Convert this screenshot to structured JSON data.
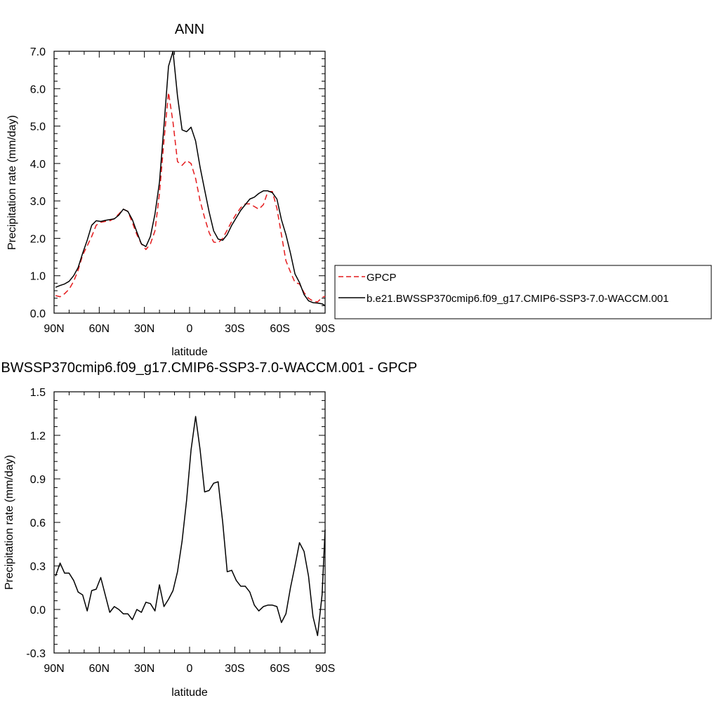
{
  "chart_data": [
    {
      "type": "line",
      "title": "ANN",
      "xlabel": "latitude",
      "ylabel": "Precipitation rate (mm/day)",
      "xlim": [
        90,
        -90
      ],
      "ylim": [
        0,
        7
      ],
      "xticks": [
        {
          "value": 90,
          "label": "90N"
        },
        {
          "value": 60,
          "label": "60N"
        },
        {
          "value": 30,
          "label": "30N"
        },
        {
          "value": 0,
          "label": "0"
        },
        {
          "value": -30,
          "label": "30S"
        },
        {
          "value": -60,
          "label": "60S"
        },
        {
          "value": -90,
          "label": "90S"
        }
      ],
      "yticks": [
        {
          "value": 0,
          "label": "0.0"
        },
        {
          "value": 1,
          "label": "1.0"
        },
        {
          "value": 2,
          "label": "2.0"
        },
        {
          "value": 3,
          "label": "3.0"
        },
        {
          "value": 4,
          "label": "4.0"
        },
        {
          "value": 5,
          "label": "5.0"
        },
        {
          "value": 6,
          "label": "6.0"
        },
        {
          "value": 7,
          "label": "7.0"
        }
      ],
      "legend_position": "right",
      "series": [
        {
          "name": "GPCP",
          "color": "#e41a1c",
          "dash": "dashed",
          "x": [
            89,
            86,
            83,
            80,
            77,
            74,
            71,
            68,
            65,
            62,
            59,
            56,
            53,
            50,
            47,
            44,
            41,
            38,
            35,
            32,
            29,
            26,
            23,
            20,
            17,
            14,
            11,
            8,
            5,
            2,
            -1,
            -4,
            -7,
            -10,
            -13,
            -16,
            -19,
            -22,
            -25,
            -28,
            -31,
            -34,
            -37,
            -40,
            -43,
            -46,
            -49,
            -52,
            -55,
            -58,
            -61,
            -64,
            -67,
            -70,
            -73,
            -76,
            -79,
            -82,
            -85,
            -88,
            -90
          ],
          "y": [
            0.47,
            0.44,
            0.52,
            0.64,
            0.85,
            1.15,
            1.55,
            1.8,
            2.05,
            2.35,
            2.43,
            2.45,
            2.47,
            2.53,
            2.65,
            2.78,
            2.72,
            2.42,
            2.1,
            1.85,
            1.7,
            1.85,
            2.2,
            3.2,
            4.6,
            5.9,
            5.1,
            4.05,
            3.95,
            4.08,
            4.0,
            3.6,
            3.0,
            2.55,
            2.15,
            1.9,
            1.88,
            2.0,
            2.22,
            2.45,
            2.65,
            2.82,
            2.92,
            2.92,
            2.85,
            2.78,
            2.9,
            3.25,
            3.25,
            2.8,
            2.1,
            1.4,
            1.1,
            0.82,
            0.78,
            0.55,
            0.4,
            0.32,
            0.3,
            0.42,
            0.45
          ]
        },
        {
          "name": "b.e21.BWSSP370cmip6.f09_g17.CMIP6-SSP3-7.0-WACCM.001",
          "color": "#000000",
          "dash": "solid",
          "x": [
            89,
            86,
            83,
            80,
            77,
            74,
            71,
            68,
            65,
            62,
            59,
            56,
            53,
            50,
            47,
            44,
            41,
            38,
            35,
            32,
            29,
            26,
            23,
            20,
            17,
            14,
            11,
            8,
            5,
            2,
            -1,
            -4,
            -7,
            -10,
            -13,
            -16,
            -19,
            -22,
            -25,
            -28,
            -31,
            -34,
            -37,
            -40,
            -43,
            -46,
            -49,
            -52,
            -55,
            -58,
            -61,
            -64,
            -67,
            -70,
            -73,
            -76,
            -79,
            -82,
            -85,
            -88,
            -90
          ],
          "y": [
            0.69,
            0.74,
            0.78,
            0.85,
            1.0,
            1.22,
            1.6,
            1.95,
            2.35,
            2.47,
            2.45,
            2.48,
            2.5,
            2.52,
            2.62,
            2.78,
            2.72,
            2.5,
            2.17,
            1.85,
            1.78,
            2.05,
            2.65,
            3.5,
            5.0,
            6.6,
            7.0,
            5.8,
            4.9,
            4.85,
            4.97,
            4.6,
            3.9,
            3.3,
            2.7,
            2.2,
            1.98,
            1.95,
            2.1,
            2.35,
            2.55,
            2.75,
            2.9,
            3.05,
            3.1,
            3.2,
            3.27,
            3.27,
            3.22,
            3.05,
            2.5,
            2.1,
            1.6,
            1.05,
            0.82,
            0.5,
            0.33,
            0.28,
            0.27,
            0.25,
            0.2
          ]
        }
      ]
    },
    {
      "type": "line",
      "title": "b.e21.BWSSP370cmip6.f09_g17.CMIP6-SSP3-7.0-WACCM.001 - GPCP",
      "xlabel": "latitude",
      "ylabel": "Precipitation rate (mm/day)",
      "xlim": [
        90,
        -90
      ],
      "ylim": [
        -0.3,
        1.5
      ],
      "xticks": [
        {
          "value": 90,
          "label": "90N"
        },
        {
          "value": 60,
          "label": "60N"
        },
        {
          "value": 30,
          "label": "30N"
        },
        {
          "value": 0,
          "label": "0"
        },
        {
          "value": -30,
          "label": "30S"
        },
        {
          "value": -60,
          "label": "60S"
        },
        {
          "value": -90,
          "label": "90S"
        }
      ],
      "yticks": [
        {
          "value": -0.3,
          "label": "-0.3"
        },
        {
          "value": 0,
          "label": "0.0"
        },
        {
          "value": 0.3,
          "label": "0.3"
        },
        {
          "value": 0.6,
          "label": "0.6"
        },
        {
          "value": 0.9,
          "label": "0.9"
        },
        {
          "value": 1.2,
          "label": "1.2"
        },
        {
          "value": 1.5,
          "label": "1.5"
        }
      ],
      "series": [
        {
          "color": "#000000",
          "dash": "solid",
          "x": [
            89,
            86,
            83,
            80,
            77,
            74,
            71,
            68,
            65,
            62,
            59,
            56,
            53,
            50,
            47,
            44,
            41,
            38,
            35,
            32,
            29,
            26,
            23,
            20,
            17,
            14,
            11,
            8,
            5,
            2,
            -1,
            -4,
            -7,
            -10,
            -13,
            -16,
            -19,
            -22,
            -25,
            -28,
            -31,
            -34,
            -37,
            -40,
            -43,
            -46,
            -49,
            -52,
            -55,
            -58,
            -61,
            -64,
            -67,
            -70,
            -73,
            -76,
            -79,
            -82,
            -85,
            -88,
            -90
          ],
          "y": [
            0.23,
            0.32,
            0.25,
            0.25,
            0.2,
            0.12,
            0.1,
            -0.01,
            0.13,
            0.14,
            0.22,
            0.1,
            -0.02,
            0.02,
            0.0,
            -0.03,
            -0.03,
            -0.07,
            0.0,
            -0.02,
            0.05,
            0.04,
            -0.01,
            0.17,
            0.02,
            0.07,
            0.13,
            0.26,
            0.47,
            0.75,
            1.1,
            1.33,
            1.1,
            0.81,
            0.82,
            0.87,
            0.88,
            0.6,
            0.26,
            0.27,
            0.2,
            0.16,
            0.16,
            0.12,
            0.03,
            -0.01,
            0.02,
            0.03,
            0.03,
            0.02,
            -0.09,
            -0.03,
            0.15,
            0.3,
            0.46,
            0.4,
            0.23,
            -0.05,
            -0.18,
            0.1,
            0.55
          ]
        }
      ]
    }
  ],
  "legend": {
    "items": [
      {
        "label": "GPCP",
        "color": "#e41a1c",
        "dash": "dashed"
      },
      {
        "label": "b.e21.BWSSP370cmip6.f09_g17.CMIP6-SSP3-7.0-WACCM.001",
        "color": "#000000",
        "dash": "solid"
      }
    ]
  }
}
